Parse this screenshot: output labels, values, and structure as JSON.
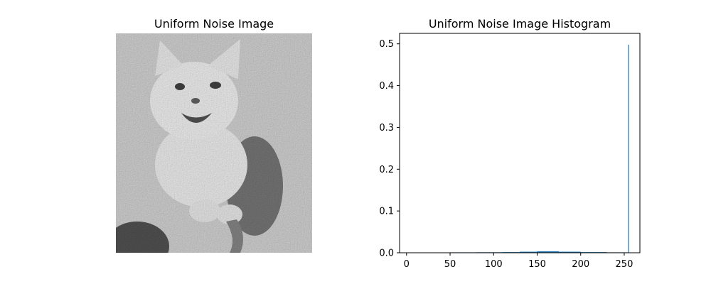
{
  "chart_data": [
    {
      "type": "image",
      "title": "Uniform Noise Image",
      "description_shown": "grayscale cat photograph with uniform noise",
      "axis": "off"
    },
    {
      "type": "histogram",
      "title": "Uniform Noise Image Histogram",
      "xlim": [
        -8,
        268
      ],
      "ylim": [
        0,
        0.525
      ],
      "xticks": [
        0,
        50,
        100,
        150,
        200,
        250
      ],
      "yticks": [
        0.0,
        0.1,
        0.2,
        0.3,
        0.4,
        0.5
      ],
      "xtick_labels": [
        "0",
        "50",
        "100",
        "150",
        "200",
        "250"
      ],
      "ytick_labels": [
        "0.0",
        "0.1",
        "0.2",
        "0.3",
        "0.4",
        "0.5"
      ],
      "bar_color": "#1f77b4",
      "bins": [
        {
          "x0": 50,
          "x1": 80,
          "value": 0.001
        },
        {
          "x0": 80,
          "x1": 110,
          "value": 0.0012
        },
        {
          "x0": 110,
          "x1": 130,
          "value": 0.0015
        },
        {
          "x0": 130,
          "x1": 150,
          "value": 0.0025
        },
        {
          "x0": 150,
          "x1": 175,
          "value": 0.0035
        },
        {
          "x0": 175,
          "x1": 200,
          "value": 0.0025
        },
        {
          "x0": 200,
          "x1": 230,
          "value": 0.0015
        },
        {
          "x0": 230,
          "x1": 254,
          "value": 0.001
        },
        {
          "x0": 254.5,
          "x1": 255.5,
          "value": 0.498
        }
      ]
    }
  ]
}
